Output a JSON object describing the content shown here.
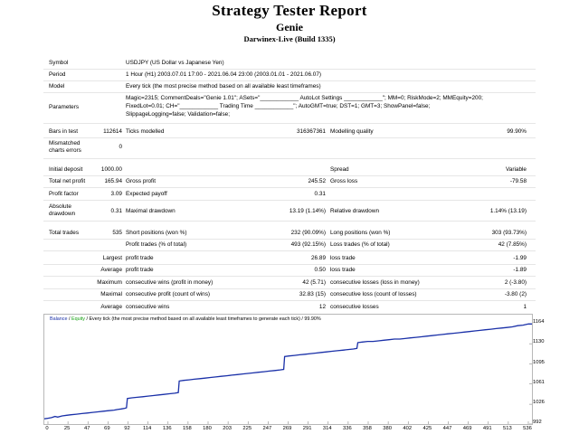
{
  "header": {
    "title": "Strategy Tester Report",
    "expert": "Genie",
    "server": "Darwinex-Live (Build 1335)"
  },
  "info": {
    "symbol_label": "Symbol",
    "symbol": "USDJPY (US Dollar vs Japanese Yen)",
    "period_label": "Period",
    "period": "1 Hour (H1) 2003.07.01 17:00 - 2021.06.04 23:00 (2003.01.01 - 2021.06.07)",
    "model_label": "Model",
    "model": "Every tick (the most precise method based on all available least timeframes)",
    "parameters_label": "Parameters",
    "param_line1": "Magic=2315; CommentDeals=\"Genie 1.01\"; ASets=\"____________ AutoLot Settings ____________\"; MM=0; RiskMode=2; MMEquity=200;",
    "param_line2": "FixedLot=0.01; CH=\"____________ Trading Time ____________\"; AutoGMT=true; DST=1; GMT=3; ShowPanel=false;",
    "param_line3": "SlippageLogging=false; Validation=false;"
  },
  "stats": {
    "bars_label": "Bars in test",
    "bars": "112614",
    "ticks_label": "Ticks modelled",
    "ticks": "316367361",
    "quality_label": "Modelling quality",
    "quality": "99.90%",
    "mismatched_label_1": "Mismatched",
    "mismatched_label_2": "charts errors",
    "mismatched": "0",
    "deposit_label": "Initial deposit",
    "deposit": "1000.00",
    "spread_label": "Spread",
    "spread": "Variable",
    "net_label": "Total net profit",
    "net": "165.94",
    "gross_profit_label": "Gross profit",
    "gross_profit": "245.52",
    "gross_loss_label": "Gross loss",
    "gross_loss": "-79.58",
    "pf_label": "Profit factor",
    "pf": "3.09",
    "payoff_label": "Expected payoff",
    "payoff": "0.31",
    "abs_dd_label_1": "Absolute",
    "abs_dd_label_2": "drawdown",
    "abs_dd": "0.31",
    "max_dd_label": "Maximal drawdown",
    "max_dd": "13.19 (1.14%)",
    "rel_dd_label": "Relative drawdown",
    "rel_dd": "1.14% (13.19)",
    "trades_label": "Total trades",
    "trades": "535",
    "short_label": "Short positions (won %)",
    "short": "232 (90.09%)",
    "long_label": "Long positions (won %)",
    "long": "303 (93.73%)",
    "profit_trades_label": "Profit trades (% of total)",
    "profit_trades": "493 (92.15%)",
    "loss_trades_label": "Loss trades (% of total)",
    "loss_trades": "42 (7.85%)",
    "largest_label": "Largest",
    "profit_trade_label": "profit trade",
    "largest_profit": "26.89",
    "loss_trade_label": "loss trade",
    "largest_loss": "-1.99",
    "average_label": "Average",
    "avg_profit": "0.50",
    "avg_loss": "-1.89",
    "maximum_label": "Maximum",
    "max_cw_money_label": "consecutive wins (profit in money)",
    "max_cw_money": "42 (5.71)",
    "max_cl_money_label": "consecutive losses (loss in money)",
    "max_cl_money": "2 (-3.80)",
    "maximal_label": "Maximal",
    "maxl_cw_count_label": "consecutive profit (count of wins)",
    "maxl_cw_count": "32.83 (15)",
    "maxl_cl_count_label": "consecutive loss (count of losses)",
    "maxl_cl_count": "-3.80 (2)",
    "avg_cw_label": "consecutive wins",
    "avg_cw": "12",
    "avg_cl_label": "consecutive losses",
    "avg_cl": "1"
  },
  "chart_data": {
    "type": "line",
    "legend": {
      "balance": "Balance",
      "sep": " / ",
      "equity": "Equity",
      "rest": " / Every tick (the most precise method based on all available least timeframes to generate each tick) / 99.90%"
    },
    "x_ticks": [
      "0",
      "25",
      "47",
      "69",
      "92",
      "114",
      "136",
      "158",
      "180",
      "203",
      "225",
      "247",
      "269",
      "291",
      "314",
      "336",
      "358",
      "380",
      "402",
      "425",
      "447",
      "469",
      "491",
      "513",
      "536"
    ],
    "y_ticks": [
      "1164",
      "1130",
      "1095",
      "1061",
      "1026",
      "992"
    ],
    "xlim": [
      0,
      546
    ],
    "ylim": [
      992,
      1180
    ],
    "colors": {
      "balance": "#1a30a8",
      "equity": "#16a012"
    },
    "series": [
      {
        "name": "Balance",
        "points": [
          [
            0,
            1001
          ],
          [
            4,
            1002
          ],
          [
            8,
            1003
          ],
          [
            12,
            1005
          ],
          [
            15,
            1004
          ],
          [
            20,
            1006
          ],
          [
            25,
            1007
          ],
          [
            30,
            1008
          ],
          [
            36,
            1009
          ],
          [
            42,
            1010
          ],
          [
            48,
            1011
          ],
          [
            54,
            1012
          ],
          [
            60,
            1013
          ],
          [
            66,
            1014
          ],
          [
            72,
            1015
          ],
          [
            78,
            1016
          ],
          [
            82,
            1017
          ],
          [
            86,
            1018
          ],
          [
            90,
            1019
          ],
          [
            92,
            1020
          ],
          [
            93,
            1036
          ],
          [
            98,
            1037
          ],
          [
            104,
            1038
          ],
          [
            110,
            1039
          ],
          [
            116,
            1040
          ],
          [
            122,
            1041
          ],
          [
            128,
            1042
          ],
          [
            134,
            1043
          ],
          [
            140,
            1044
          ],
          [
            146,
            1045
          ],
          [
            150,
            1046
          ],
          [
            151,
            1066
          ],
          [
            156,
            1067
          ],
          [
            162,
            1068
          ],
          [
            168,
            1069
          ],
          [
            174,
            1070
          ],
          [
            180,
            1071
          ],
          [
            186,
            1072
          ],
          [
            192,
            1073
          ],
          [
            198,
            1074
          ],
          [
            204,
            1075
          ],
          [
            210,
            1076
          ],
          [
            216,
            1077
          ],
          [
            222,
            1078
          ],
          [
            228,
            1079
          ],
          [
            234,
            1080
          ],
          [
            240,
            1081
          ],
          [
            246,
            1082
          ],
          [
            252,
            1083
          ],
          [
            258,
            1084
          ],
          [
            264,
            1085
          ],
          [
            268,
            1086
          ],
          [
            269,
            1108
          ],
          [
            274,
            1109
          ],
          [
            280,
            1110
          ],
          [
            286,
            1111
          ],
          [
            292,
            1112
          ],
          [
            298,
            1113
          ],
          [
            304,
            1114
          ],
          [
            310,
            1115
          ],
          [
            316,
            1116
          ],
          [
            322,
            1117
          ],
          [
            328,
            1118
          ],
          [
            334,
            1119
          ],
          [
            340,
            1120
          ],
          [
            346,
            1121
          ],
          [
            350,
            1122
          ],
          [
            351,
            1132
          ],
          [
            356,
            1133
          ],
          [
            362,
            1134
          ],
          [
            368,
            1134
          ],
          [
            374,
            1135
          ],
          [
            380,
            1136
          ],
          [
            386,
            1137
          ],
          [
            392,
            1138
          ],
          [
            398,
            1138
          ],
          [
            404,
            1139
          ],
          [
            410,
            1140
          ],
          [
            416,
            1141
          ],
          [
            422,
            1142
          ],
          [
            428,
            1143
          ],
          [
            434,
            1144
          ],
          [
            440,
            1145
          ],
          [
            446,
            1146
          ],
          [
            452,
            1147
          ],
          [
            458,
            1148
          ],
          [
            464,
            1149
          ],
          [
            470,
            1150
          ],
          [
            476,
            1151
          ],
          [
            482,
            1152
          ],
          [
            488,
            1153
          ],
          [
            494,
            1154
          ],
          [
            500,
            1155
          ],
          [
            506,
            1156
          ],
          [
            512,
            1157
          ],
          [
            518,
            1158
          ],
          [
            524,
            1159
          ],
          [
            530,
            1161
          ],
          [
            536,
            1162
          ],
          [
            542,
            1164
          ],
          [
            546,
            1164
          ]
        ]
      }
    ]
  }
}
